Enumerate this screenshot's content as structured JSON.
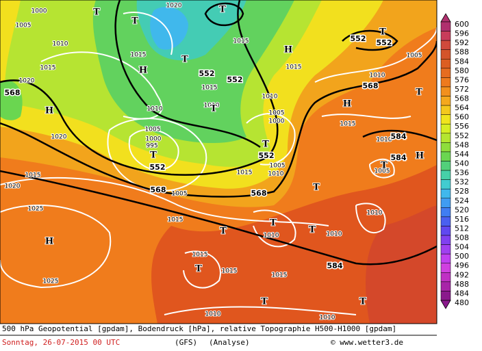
{
  "map": {
    "pressure_systems": [
      "H",
      "T",
      "T",
      "T",
      "H",
      "H",
      "T",
      "T",
      "T",
      "T",
      "H",
      "T",
      "H",
      "H",
      "T",
      "T",
      "T",
      "T",
      "T",
      "T",
      "T",
      "T",
      "T"
    ],
    "contour_labels": [
      "552",
      "552",
      "552",
      "552",
      "552",
      "552",
      "568",
      "568",
      "568",
      "568",
      "584",
      "584",
      "584"
    ],
    "isobar_labels": [
      "1000",
      "1005",
      "1010",
      "1015",
      "1020",
      "1015",
      "1020",
      "1015",
      "1015",
      "1010",
      "1015",
      "1010",
      "1005",
      "1000",
      "995",
      "1020",
      "1015",
      "1020",
      "1025",
      "1025",
      "1005",
      "1015",
      "1010",
      "1010",
      "1010",
      "1015",
      "1015",
      "1015",
      "1010",
      "1010",
      "1005",
      "1010",
      "1015",
      "1005",
      "1000",
      "1010",
      "1005",
      "1010",
      "1015",
      "1010",
      "1005"
    ]
  },
  "colorbar": {
    "labels": [
      600,
      596,
      592,
      588,
      584,
      580,
      576,
      572,
      568,
      564,
      560,
      556,
      552,
      548,
      544,
      540,
      536,
      532,
      528,
      524,
      520,
      516,
      512,
      508,
      504,
      500,
      496,
      492,
      488,
      484,
      480
    ],
    "colors": [
      "#b0306e",
      "#c83c5a",
      "#d04a3c",
      "#d4542a",
      "#dc5e22",
      "#e66c20",
      "#ee7a1e",
      "#f2901e",
      "#f4a81e",
      "#f4c81e",
      "#f0e41e",
      "#d6ee24",
      "#b4e630",
      "#8ede3c",
      "#6ad650",
      "#52d07a",
      "#46d0a8",
      "#42ccd0",
      "#40b8ec",
      "#409cf2",
      "#407ef2",
      "#4a60f0",
      "#6048f0",
      "#8040f0",
      "#a040f0",
      "#c040f0",
      "#d040e0",
      "#c030c4",
      "#a824a8",
      "#8a1a8c"
    ]
  },
  "caption": {
    "line1": "500 hPa Geopotential [gpdam], Bodendruck [hPa], relative Topographie H500-H1000 [gpdam]",
    "date": "Sonntag, 26-07-2015  00 UTC",
    "model": "(GFS)",
    "run": "(Analyse)",
    "source": "© www.wetter3.de"
  }
}
